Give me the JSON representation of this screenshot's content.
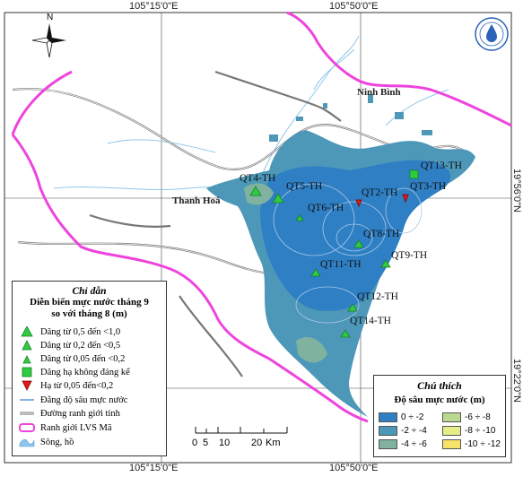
{
  "coords": {
    "top_left": "105°15'0\"E",
    "top_right": "105°50'0\"E",
    "bottom_left": "105°15'0\"E",
    "bottom_right": "105°50'0\"E",
    "right_upper": "19°56'0\"N",
    "right_lower": "19°22'0\"N"
  },
  "north_label": "N",
  "places": {
    "ninh_binh": "Ninh Bình",
    "thanh_hoa": "Thanh Hoá"
  },
  "stations": [
    {
      "label": "QT4-TH",
      "symbol": "triangle-large"
    },
    {
      "label": "QT5-TH",
      "symbol": "triangle-large"
    },
    {
      "label": "QT6-TH",
      "symbol": "triangle-small"
    },
    {
      "label": "QT2-TH",
      "symbol": "triangle-down"
    },
    {
      "label": "QT3-TH",
      "symbol": "triangle-down"
    },
    {
      "label": "QT13-TH",
      "symbol": "square"
    },
    {
      "label": "QT8-TH",
      "symbol": "triangle-large"
    },
    {
      "label": "QT11-TH",
      "symbol": "triangle-large"
    },
    {
      "label": "QT9-TH",
      "symbol": "triangle-large"
    },
    {
      "label": "QT12-TH",
      "symbol": "triangle-large"
    },
    {
      "label": "QT14-TH",
      "symbol": "triangle-large"
    }
  ],
  "legend_left": {
    "title": "Chỉ dẫn",
    "subtitle_1": "Diễn biến mực nước tháng 9",
    "subtitle_2": "so với tháng 8 (m)",
    "items": [
      "Dâng từ 0,5 đến <1,0",
      "Dâng từ 0,2 đến <0,5",
      "Dâng từ 0,05 đến <0,2",
      "Dâng hạ không đáng kể",
      "Hạ từ 0,05 đến<0,2",
      "Đẳng độ sâu mực nước",
      "Đường ranh giới tỉnh",
      "Ranh giới LVS Mã",
      "Sông, hồ"
    ]
  },
  "legend_right": {
    "title": "Chú thích",
    "subtitle": "Độ sâu mực nước (m)",
    "classes": [
      {
        "label": "0 ÷ -2",
        "color": "#2f7fc4"
      },
      {
        "label": "-2 ÷ -4",
        "color": "#4d98b8"
      },
      {
        "label": "-4 ÷ -6",
        "color": "#7fb3a0"
      },
      {
        "label": "-6 ÷ -8",
        "color": "#bcd88f"
      },
      {
        "label": "-8 ÷ -10",
        "color": "#e6ec86"
      },
      {
        "label": "-10 ÷ -12",
        "color": "#f7e36a"
      }
    ]
  },
  "scale": {
    "ticks": [
      "0",
      "5",
      "10",
      "20"
    ],
    "unit": "Km"
  },
  "colors": {
    "boundary_basin": "#ee44dd",
    "boundary_province": "#666666",
    "river": "#8ec7ea",
    "land_bg": "#ffffff"
  }
}
